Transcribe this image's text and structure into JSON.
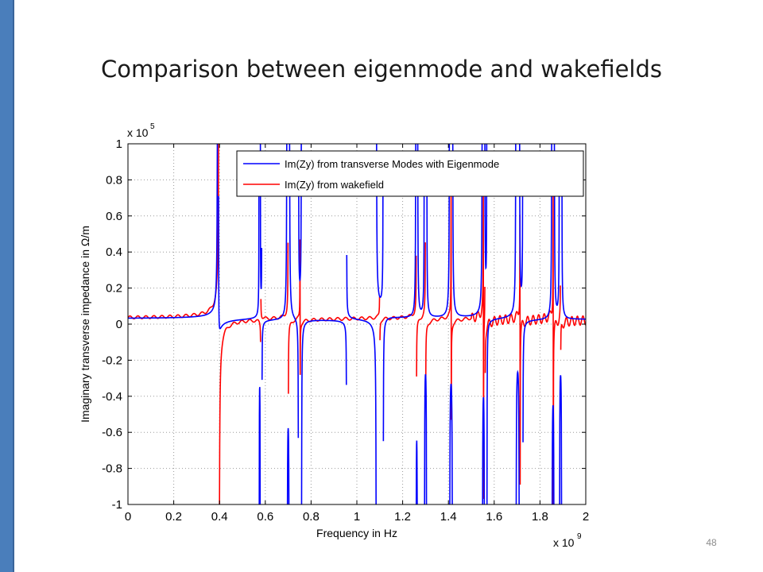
{
  "slide": {
    "title": "Comparison between eigenmode and wakefields",
    "page_number": "48",
    "accent_color": "#4a7ebb"
  },
  "chart_data": {
    "type": "line",
    "title": "",
    "xlabel": "Frequency in Hz",
    "ylabel": "Imaginary transverse impedance in Ω/m",
    "x_exponent_label": "x 10",
    "x_exponent_power": "9",
    "y_exponent_label": "x 10",
    "y_exponent_power": "5",
    "xlim": [
      0,
      2
    ],
    "ylim": [
      -1,
      1
    ],
    "x_ticks": [
      0,
      0.2,
      0.4,
      0.6,
      0.8,
      1,
      1.2,
      1.4,
      1.6,
      1.8,
      2
    ],
    "x_tick_labels": [
      "0",
      "0.2",
      "0.4",
      "0.6",
      "0.8",
      "1",
      "1.2",
      "1.4",
      "1.6",
      "1.8",
      "2"
    ],
    "y_ticks": [
      -1,
      -0.8,
      -0.6,
      -0.4,
      -0.2,
      0,
      0.2,
      0.4,
      0.6,
      0.8,
      1
    ],
    "y_tick_labels": [
      "-1",
      "-0.8",
      "-0.6",
      "-0.4",
      "-0.2",
      "0",
      "0.2",
      "0.4",
      "0.6",
      "0.8",
      "1"
    ],
    "grid": true,
    "legend_position": "top-right",
    "series": [
      {
        "name": "Im(Zy) from transverse Modes with Eigenmode",
        "color": "#0000ff",
        "resonances": [
          {
            "f0": 0.392,
            "A": 0.002
          },
          {
            "f0": 0.395,
            "A": -0.001
          },
          {
            "f0": 0.573,
            "A": 0.0005
          },
          {
            "f0": 0.578,
            "A": -0.0005
          },
          {
            "f0": 0.585,
            "A": 0.0003
          },
          {
            "f0": 0.695,
            "A": 0.0015
          },
          {
            "f0": 0.705,
            "A": -0.0015
          },
          {
            "f0": 0.745,
            "A": -0.0006
          },
          {
            "f0": 0.758,
            "A": 0.0008
          },
          {
            "f0": 0.955,
            "A": -0.0003
          },
          {
            "f0": 1.085,
            "A": -0.0012
          },
          {
            "f0": 1.115,
            "A": 0.0006
          },
          {
            "f0": 1.258,
            "A": 0.0012
          },
          {
            "f0": 1.265,
            "A": -0.0012
          },
          {
            "f0": 1.295,
            "A": 0.0008
          },
          {
            "f0": 1.305,
            "A": -0.0008
          },
          {
            "f0": 1.405,
            "A": 0.0012
          },
          {
            "f0": 1.418,
            "A": -0.0012
          },
          {
            "f0": 1.548,
            "A": 0.0012
          },
          {
            "f0": 1.558,
            "A": -0.0012
          },
          {
            "f0": 1.568,
            "A": 0.0006
          },
          {
            "f0": 1.695,
            "A": 0.0012
          },
          {
            "f0": 1.71,
            "A": -0.0012
          },
          {
            "f0": 1.725,
            "A": 0.0006
          },
          {
            "f0": 1.852,
            "A": 0.0012
          },
          {
            "f0": 1.862,
            "A": -0.0012
          },
          {
            "f0": 1.885,
            "A": 0.0008
          },
          {
            "f0": 1.895,
            "A": -0.0008
          }
        ]
      },
      {
        "name": "Im(Zy) from wakefield",
        "color": "#ff0000",
        "resonances": [
          {
            "f0": 0.398,
            "A": 0.002
          },
          {
            "f0": 0.58,
            "A": -0.0001
          },
          {
            "f0": 0.7,
            "A": 0.00035
          },
          {
            "f0": 0.752,
            "A": 0.00015
          },
          {
            "f0": 1.1,
            "A": 0.0001
          },
          {
            "f0": 1.26,
            "A": 0.00028
          },
          {
            "f0": 1.3,
            "A": 0.00035
          },
          {
            "f0": 1.412,
            "A": 0.00028
          },
          {
            "f0": 1.553,
            "A": 0.00035
          },
          {
            "f0": 1.56,
            "A": 0.0002
          },
          {
            "f0": 1.713,
            "A": 0.0003
          },
          {
            "f0": 1.858,
            "A": 0.00035
          },
          {
            "f0": 1.89,
            "A": 0.00015
          }
        ],
        "fine_ripple": true
      }
    ]
  }
}
